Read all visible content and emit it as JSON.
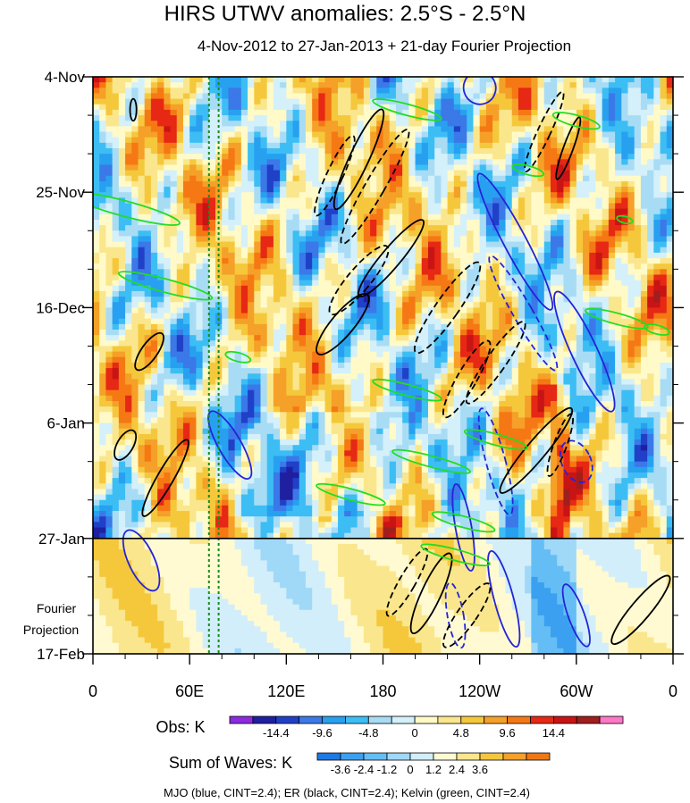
{
  "chart_data": {
    "type": "heatmap",
    "title": "HIRS UTWV anomalies: 2.5°S - 2.5°N",
    "subtitle": "4-Nov-2012 to 27-Jan-2013 + 21-day Fourier Projection",
    "x_label": "",
    "x_ticks": [
      {
        "label": "0",
        "lon": 0
      },
      {
        "label": "60E",
        "lon": 60
      },
      {
        "label": "120E",
        "lon": 120
      },
      {
        "label": "180",
        "lon": 180
      },
      {
        "label": "120W",
        "lon": 240
      },
      {
        "label": "60W",
        "lon": 300
      },
      {
        "label": "0",
        "lon": 360
      }
    ],
    "x_range_deg_east": [
      0,
      360
    ],
    "y_ticks": [
      {
        "label": "4-Nov",
        "day": 0
      },
      {
        "label": "25-Nov",
        "day": 21
      },
      {
        "label": "16-Dec",
        "day": 42
      },
      {
        "label": "6-Jan",
        "day": 63
      },
      {
        "label": "27-Jan",
        "day": 84
      },
      {
        "label": "17-Feb",
        "day": 105
      }
    ],
    "y_range_days": [
      0,
      105
    ],
    "observation_end_day": 84,
    "projection_label": [
      "Fourier",
      "Projection"
    ],
    "reference_longitudes_deg": [
      72,
      78
    ],
    "obs_colorbar": {
      "label": "Obs: K",
      "tick_labels": [
        "-14.4",
        "-9.6",
        "-4.8",
        "0",
        "4.8",
        "9.6",
        "14.4"
      ],
      "colors": [
        "#8c2be0",
        "#1f1fa0",
        "#2040c8",
        "#3b78e8",
        "#28a0f0",
        "#3cbef5",
        "#a8dcf5",
        "#d4f0fa",
        "#fffac8",
        "#fae68c",
        "#f5c83c",
        "#f5a028",
        "#f57814",
        "#e62814",
        "#c81414",
        "#a01e1e",
        "#ff78c8"
      ]
    },
    "waves_colorbar": {
      "label": "Sum of Waves: K",
      "tick_labels": [
        "-3.6",
        "-2.4",
        "-1.2",
        "0",
        "1.2",
        "2.4",
        "3.6"
      ],
      "colors": [
        "#1e78e6",
        "#3ca0f0",
        "#64bef5",
        "#a0d8f8",
        "#d2eefa",
        "#fffad2",
        "#fae68c",
        "#f5c83c",
        "#f5a028",
        "#f07814"
      ]
    },
    "legend_note": "MJO (blue, CINT=2.4); ER (black, CINT=2.4); Kelvin (green, CINT=2.4)",
    "series": [
      {
        "name": "MJO",
        "color": "#2424d8"
      },
      {
        "name": "ER",
        "color": "#000000"
      },
      {
        "name": "Kelvin",
        "color": "#22dd22"
      }
    ]
  }
}
